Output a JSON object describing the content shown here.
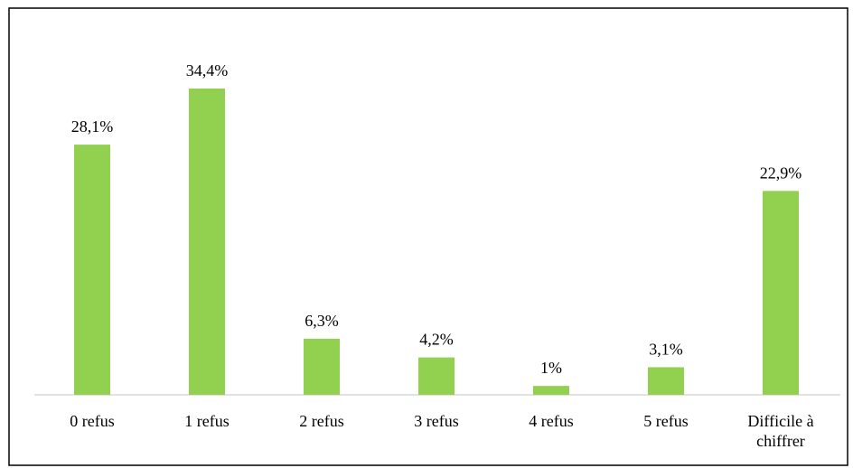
{
  "chart_data": {
    "type": "bar",
    "categories": [
      "0 refus",
      "1 refus",
      "2 refus",
      "3 refus",
      "4 refus",
      "5 refus",
      "Difficile à chiffrer"
    ],
    "values": [
      28.1,
      34.4,
      6.3,
      4.2,
      1,
      3.1,
      22.9
    ],
    "value_labels": [
      "28,1%",
      "34,4%",
      "6,3%",
      "4,2%",
      "1%",
      "3,1%",
      "22,9%"
    ],
    "color": "#92d050"
  }
}
